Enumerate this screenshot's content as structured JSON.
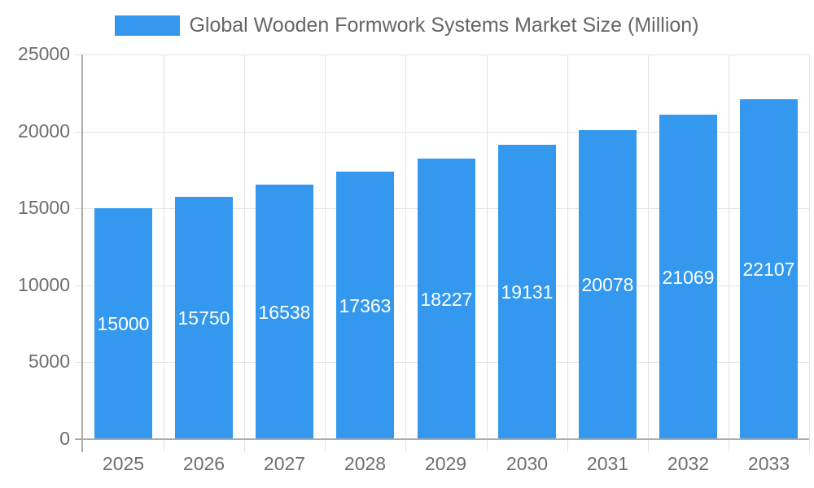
{
  "colors": {
    "bar": "#3499EE",
    "legend_text": "#666666",
    "tick_text": "#6E6E6E",
    "axis_line": "#ABABAB",
    "gridline": "#E3E3E3",
    "bar_value_text": "#FFFFFF",
    "background": "#FFFFFF"
  },
  "chart_data": {
    "type": "bar",
    "title": "Global Wooden Formwork Systems Market Size (Million)",
    "legend": [
      "Global Wooden Formwork Systems Market Size (Million)"
    ],
    "legend_position": "top",
    "categories": [
      "2025",
      "2026",
      "2027",
      "2028",
      "2029",
      "2030",
      "2031",
      "2032",
      "2033"
    ],
    "values": [
      15000,
      15750,
      16538,
      17363,
      18227,
      19131,
      20078,
      21069,
      22107
    ],
    "xlabel": "",
    "ylabel": "",
    "ylim": [
      0,
      25000
    ],
    "ytick_step": 5000,
    "yticks": [
      0,
      5000,
      10000,
      15000,
      20000,
      25000
    ],
    "grid": "horizontal-and-vertical",
    "value_labels_position": "inside-middle"
  }
}
